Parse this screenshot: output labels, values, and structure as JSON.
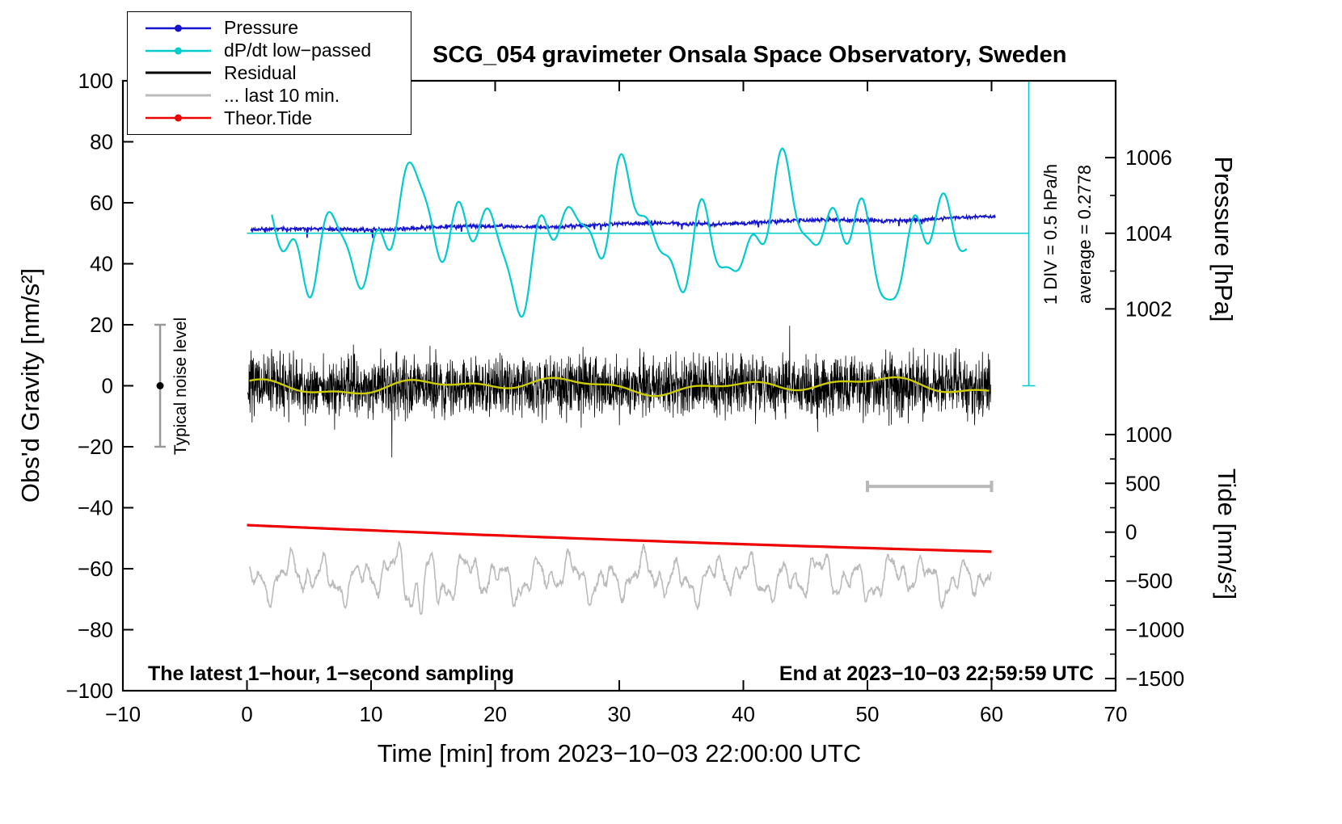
{
  "title": "SCG_054 gravimeter Onsala Space Observatory, Sweden",
  "labels": {
    "xlabel": "Time [min] from 2023−10−03 22:00:00 UTC",
    "ylabel_left": "Obs'd Gravity [nm/s²]",
    "ylabel_pressure": "Pressure [hPa]",
    "ylabel_tide": "Tide [nm/s²]"
  },
  "annotations": {
    "div_scale": "1 DIV = 0.5 hPa/h",
    "average": "average = 0.2778",
    "noise_level": "Typical noise level",
    "sampling": "The latest 1−hour, 1−second sampling",
    "end_time": "End at 2023−10−03 22:59:59 UTC"
  },
  "legend": {
    "items": [
      {
        "label": "Pressure",
        "color": "#1414cc",
        "marker": true,
        "width": 2.5
      },
      {
        "label": "dP/dt low−passed",
        "color": "#00cccc",
        "marker": true,
        "width": 2.5
      },
      {
        "label": "Residual",
        "color": "#000000",
        "marker": false,
        "width": 3
      },
      {
        "label": "... last 10 min.",
        "color": "#bbbbbb",
        "marker": false,
        "width": 3
      },
      {
        "label": "Theor.Tide",
        "color": "#ee0000",
        "marker": true,
        "width": 2.5
      }
    ]
  },
  "chart_data": {
    "type": "line",
    "title": "SCG_054 gravimeter Onsala Space Observatory, Sweden",
    "xlabel": "Time [min] from 2023−10−03 22:00:00 UTC",
    "ylabel": "Obs'd Gravity [nm/s²]",
    "xlim": [
      -10,
      70
    ],
    "ylim": [
      -100,
      100
    ],
    "x_ticks": [
      -10,
      0,
      10,
      20,
      30,
      40,
      50,
      60,
      70
    ],
    "y_ticks": [
      -100,
      -80,
      -60,
      -40,
      -20,
      0,
      20,
      40,
      60,
      80,
      100
    ],
    "grid": false,
    "legend_position": "top-left",
    "right_axes": {
      "pressure": {
        "label": "Pressure [hPa]",
        "ticks": [
          1002,
          1004,
          1006
        ],
        "minor_ticks": [
          1003,
          1005
        ],
        "pressure_ref": 1004,
        "gravity_ref": 50,
        "gravity_per_hpa": 12.4
      },
      "tide": {
        "label": "Tide [nm/s²]",
        "ticks": [
          1000,
          500,
          0,
          -500,
          -1000,
          -1500
        ],
        "minor_ticks": [
          750,
          250,
          -250,
          -750,
          -1250
        ],
        "gravity_at_zero": -48,
        "gravity_per_unit": 0.032
      }
    },
    "series": [
      {
        "id": "pressure",
        "name": "Pressure",
        "kind": "noisy_trend",
        "color": "#1414cc",
        "width": 1.6,
        "seed": 11,
        "n": 1400,
        "x0": 0.3,
        "x1": 60.3,
        "g0": 51.1,
        "g1": 55.2,
        "curve": 1.25,
        "wiggle_amp": 0.35,
        "wiggle_freq": 0.45,
        "noise": 0.55,
        "spike_prob": 0.012,
        "hpa_start": 1004.05,
        "hpa_end": 1004.38
      },
      {
        "id": "dpdt",
        "name": "dP/dt low−passed",
        "kind": "harmonics",
        "color": "#00cccc",
        "width": 2.2,
        "x0": 2,
        "x1": 58,
        "step": 0.08,
        "mean": 50,
        "zero_line": 50,
        "units_per_hpa_per_h": 25,
        "harmonics": [
          {
            "a": 10,
            "f": 1.05,
            "p": 0.5
          },
          {
            "a": 9,
            "f": 0.42,
            "p": 1.8
          },
          {
            "a": 7,
            "f": 1.9,
            "p": 0.9
          },
          {
            "a": 4,
            "f": 2.9,
            "p": 2.5
          }
        ]
      },
      {
        "id": "residual",
        "name": "Residual",
        "kind": "noise_band",
        "color": "#000000",
        "width": 0.8,
        "seed": 7,
        "n": 3000,
        "x0": 0.05,
        "x1": 59.95,
        "mean": 0,
        "sigma_units": 8.5,
        "spike_prob": 0.006,
        "spike_gain": 1.9,
        "clip": 27
      },
      {
        "id": "residual-smooth",
        "name": "Residual smoothed",
        "kind": "harmonics",
        "color": "#cccc00",
        "width": 2.4,
        "x0": 0.2,
        "x1": 59.9,
        "step": 0.2,
        "mean": 0,
        "harmonics": [
          {
            "a": 1.5,
            "f": 0.5,
            "p": 1.0
          },
          {
            "a": 1.2,
            "f": 0.23,
            "p": 3.0
          },
          {
            "a": 0.8,
            "f": 1.1,
            "p": 0.0
          }
        ]
      },
      {
        "id": "last10",
        "name": "... last 10 min.",
        "kind": "harmonic_noise",
        "color": "#bbbbbb",
        "width": 1.6,
        "seed": 23,
        "n": 1500,
        "x0": 0.2,
        "x1": 60,
        "mean": -63,
        "noise": 0.9,
        "harmonics": [
          {
            "a": 4.2,
            "f": 2.2,
            "p": 0.5
          },
          {
            "a": 2.8,
            "f": 5.1,
            "p": 1.7
          },
          {
            "a": 2.2,
            "f": 0.9,
            "p": 4.0
          },
          {
            "a": 1.5,
            "f": 9.3,
            "p": 0.0
          }
        ],
        "spike": {
          "center": 14,
          "width": 1.8,
          "gain": 1.0
        }
      },
      {
        "id": "tide",
        "name": "Theor.Tide",
        "kind": "trend",
        "color": "#ee0000",
        "width": 3.2,
        "x": [
          0,
          60
        ],
        "g": [
          -45.7,
          -54.4
        ],
        "tide_nms2": [
          60,
          -200
        ],
        "sag": 0.5
      }
    ],
    "reference_marks": {
      "dpdt_zero_line": {
        "y": 50,
        "x0": 0,
        "x1": 63,
        "color": "#00cccc"
      },
      "dpdt_scale_bar": {
        "x": 63,
        "y0": 0,
        "y1": 100,
        "cap": 8,
        "color": "#00cccc"
      },
      "ten_min_bar": {
        "y": -33,
        "x0": 50,
        "x1": 60,
        "cap": 7,
        "color": "#b8b8b8"
      },
      "noise_bar": {
        "x": -7,
        "y0": -20,
        "y1": 20,
        "cap": 7,
        "color": "#999999",
        "dot_y": 0,
        "dot_color": "#000000"
      }
    }
  }
}
